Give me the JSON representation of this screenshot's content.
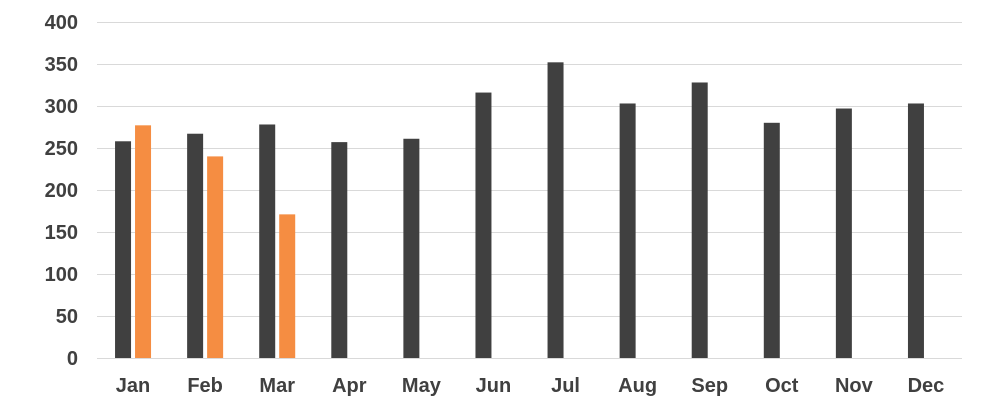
{
  "chart_data": {
    "type": "bar",
    "title": "",
    "xlabel": "",
    "ylabel": "",
    "categories": [
      "Jan",
      "Feb",
      "Mar",
      "Apr",
      "May",
      "Jun",
      "Jul",
      "Aug",
      "Sep",
      "Oct",
      "Nov",
      "Dec"
    ],
    "series": [
      {
        "color": "#404040",
        "values": [
          258,
          267,
          278,
          257,
          261,
          316,
          352,
          303,
          328,
          280,
          297,
          303
        ]
      },
      {
        "color": "#f58d42",
        "values": [
          277,
          240,
          171,
          null,
          null,
          null,
          null,
          null,
          null,
          null,
          null,
          null
        ]
      }
    ],
    "ylim": [
      0,
      400
    ],
    "yticks": [
      0,
      50,
      100,
      150,
      200,
      250,
      300,
      350,
      400
    ],
    "grid": true,
    "legend": "none"
  }
}
